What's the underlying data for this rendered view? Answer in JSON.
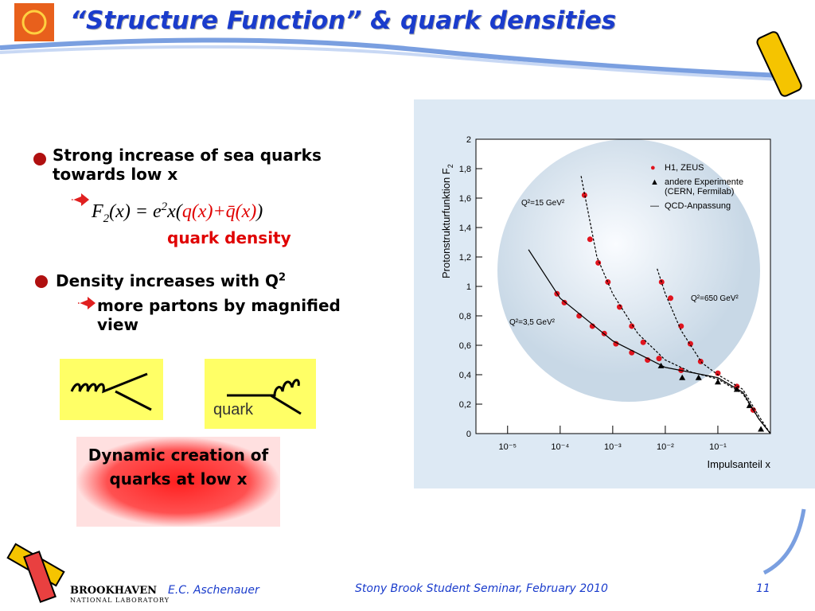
{
  "header": {
    "title": "“Structure Function” & quark densities"
  },
  "bullets": [
    {
      "text": "Strong increase of sea quarks towards low x"
    },
    {
      "text": "Density increases with Q",
      "sup": "2"
    }
  ],
  "formula": {
    "parts": [
      "F",
      "2",
      "(x) = e",
      "2",
      "x(",
      "q(x)+q̄(x)",
      ")"
    ]
  },
  "formula_note": "quark density",
  "sub_bullet": "more partons by magnified view",
  "diagram_label": "quark",
  "callout": "Dynamic creation of quarks at low x",
  "footer": {
    "logo_name": "BROOKHAVEN",
    "logo_sub": "NATIONAL LABORATORY",
    "author": "E.C. Aschenauer",
    "event": "Stony Brook Student Seminar, February 2010",
    "page": "11"
  },
  "chart_data": {
    "type": "scatter",
    "log_x": true,
    "ylabel": "Protonstrukturfunktion F",
    "ylabel_sub": "2",
    "xlabel": "Impulsanteil x",
    "xlim": [
      2.5e-06,
      1
    ],
    "xticks": [
      {
        "value": 1e-05,
        "label": "10⁻⁵"
      },
      {
        "value": 0.0001,
        "label": "10⁻⁴"
      },
      {
        "value": 0.001,
        "label": "10⁻³"
      },
      {
        "value": 0.01,
        "label": "10⁻²"
      },
      {
        "value": 0.1,
        "label": "10⁻¹"
      }
    ],
    "ylim": [
      0,
      2
    ],
    "yticks": [
      0,
      {
        "value": 0.2,
        "label": "0,2"
      },
      {
        "value": 0.4,
        "label": "0,4"
      },
      {
        "value": 0.6,
        "label": "0,6"
      },
      {
        "value": 0.8,
        "label": "0,8"
      },
      1,
      {
        "value": 1.2,
        "label": "1,2"
      },
      {
        "value": 1.4,
        "label": "1,4"
      },
      {
        "value": 1.6,
        "label": "1,6"
      },
      {
        "value": 1.8,
        "label": "1,8"
      },
      2
    ],
    "annotations": [
      "Q²=15 GeV²",
      "Q²=650 GeV²",
      "Q²=3,5 GeV²"
    ],
    "series": [
      {
        "name": "H1, ZEUS",
        "marker": "circle",
        "color": "#e0141e",
        "x": [
          8.7e-05,
          0.00012,
          0.00023,
          0.00041,
          0.00069,
          0.00115,
          0.0023,
          0.0046,
          0.00029,
          0.00037,
          0.00053,
          0.00081,
          0.00135,
          0.0023,
          0.0038,
          0.0076,
          0.02,
          0.0085,
          0.0126,
          0.02,
          0.03,
          0.047,
          0.1,
          0.23,
          0.47
        ],
        "values": [
          0.95,
          0.89,
          0.8,
          0.73,
          0.68,
          0.61,
          0.55,
          0.5,
          1.62,
          1.32,
          1.16,
          1.03,
          0.86,
          0.73,
          0.62,
          0.51,
          0.43,
          1.03,
          0.92,
          0.73,
          0.61,
          0.49,
          0.41,
          0.32,
          0.16
        ]
      },
      {
        "name": "andere Experimente\n(CERN, Fermilab)",
        "marker": "triangle",
        "color": "#000000",
        "x": [
          0.0083,
          0.021,
          0.043,
          0.1,
          0.23,
          0.4,
          0.66
        ],
        "values": [
          0.46,
          0.38,
          0.38,
          0.35,
          0.3,
          0.19,
          0.03
        ]
      },
      {
        "name": "QCD-Anpassung",
        "marker": "line",
        "color": "#000000",
        "x": [
          2.5e-05,
          0.0001,
          0.001,
          0.01,
          0.1,
          0.3,
          0.6,
          1
        ],
        "values": [
          1.25,
          0.92,
          0.63,
          0.45,
          0.38,
          0.28,
          0.1,
          0
        ]
      },
      {
        "marker": "dashed",
        "color": "#000000",
        "x": [
          0.00025,
          0.0005,
          0.001,
          0.003,
          0.01,
          0.03,
          0.1,
          0.3,
          0.6,
          1
        ],
        "values": [
          1.75,
          1.2,
          0.95,
          0.68,
          0.5,
          0.42,
          0.37,
          0.27,
          0.1,
          0
        ]
      },
      {
        "marker": "dashed",
        "color": "#000000",
        "x": [
          0.007,
          0.01,
          0.02,
          0.05,
          0.1,
          0.3,
          0.6,
          1
        ],
        "values": [
          1.12,
          0.95,
          0.7,
          0.48,
          0.4,
          0.3,
          0.12,
          0
        ]
      }
    ]
  }
}
